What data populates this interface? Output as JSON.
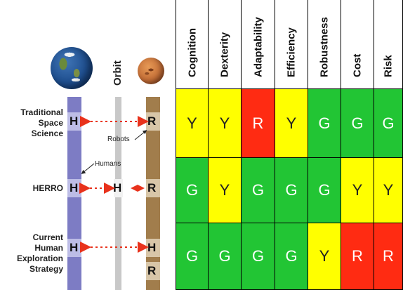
{
  "rows": [
    {
      "label_lines": [
        "Traditional",
        "Space",
        "Science"
      ]
    },
    {
      "label_lines": [
        "HERRO"
      ]
    },
    {
      "label_lines": [
        "Current",
        "Human",
        "Exploration",
        "Strategy"
      ]
    }
  ],
  "orbit_label": "Orbit",
  "annotations": {
    "robots": "Robots",
    "humans": "Humans"
  },
  "markers": {
    "human": "H",
    "robot": "R"
  },
  "columns": [
    "Cognition",
    "Dexterity",
    "Adaptability",
    "Efficiency",
    "Robustness",
    "Cost",
    "Risk"
  ],
  "grid": [
    [
      "Y",
      "Y",
      "R",
      "Y",
      "G",
      "G",
      "G"
    ],
    [
      "G",
      "Y",
      "G",
      "G",
      "G",
      "Y",
      "Y"
    ],
    [
      "G",
      "G",
      "G",
      "G",
      "Y",
      "R",
      "R"
    ]
  ],
  "colors": {
    "G": "#22c534",
    "Y": "#ffff00",
    "R": "#ff2b12",
    "arrow": "#e8321c"
  }
}
